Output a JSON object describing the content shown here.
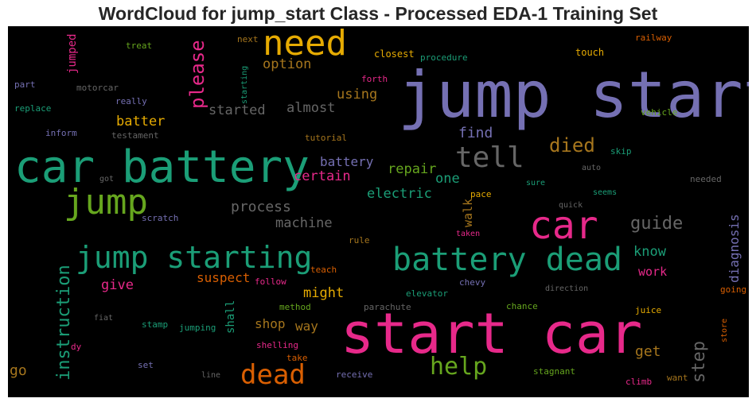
{
  "chart_data": {
    "type": "wordcloud",
    "title": "WordCloud for jump_start Class - Processed EDA-1 Training Set",
    "background": "#000000",
    "colormap": "Dark2",
    "words": [
      {
        "text": "jump start",
        "color": "#7570b3"
      },
      {
        "text": "start car",
        "color": "#e7298a"
      },
      {
        "text": "car battery",
        "color": "#1b9e77"
      },
      {
        "text": "battery dead",
        "color": "#1b9e77"
      },
      {
        "text": "need",
        "color": "#e6ab02"
      },
      {
        "text": "car",
        "color": "#e7298a"
      },
      {
        "text": "jump starting",
        "color": "#1b9e77"
      },
      {
        "text": "jump",
        "color": "#66a61e"
      },
      {
        "text": "tell",
        "color": "#666666"
      },
      {
        "text": "dead",
        "color": "#d95f02"
      },
      {
        "text": "help",
        "color": "#66a61e"
      },
      {
        "text": "please",
        "color": "#e7298a"
      },
      {
        "text": "instruction",
        "color": "#1b9e77"
      },
      {
        "text": "died",
        "color": "#a6761d"
      },
      {
        "text": "guide",
        "color": "#666666"
      },
      {
        "text": "step",
        "color": "#666666"
      },
      {
        "text": "option",
        "color": "#a6761d"
      },
      {
        "text": "started",
        "color": "#666666"
      },
      {
        "text": "almost",
        "color": "#666666"
      },
      {
        "text": "using",
        "color": "#a6761d"
      },
      {
        "text": "batter",
        "color": "#e6ab02"
      },
      {
        "text": "find",
        "color": "#7570b3"
      },
      {
        "text": "battery",
        "color": "#7570b3"
      },
      {
        "text": "certain",
        "color": "#e7298a"
      },
      {
        "text": "repair",
        "color": "#66a61e"
      },
      {
        "text": "one",
        "color": "#1b9e77"
      },
      {
        "text": "electric",
        "color": "#1b9e77"
      },
      {
        "text": "process",
        "color": "#666666"
      },
      {
        "text": "machine",
        "color": "#666666"
      },
      {
        "text": "know",
        "color": "#1b9e77"
      },
      {
        "text": "work",
        "color": "#e7298a"
      },
      {
        "text": "give",
        "color": "#e7298a"
      },
      {
        "text": "suspect",
        "color": "#d95f02"
      },
      {
        "text": "might",
        "color": "#e6ab02"
      },
      {
        "text": "shop",
        "color": "#a6761d"
      },
      {
        "text": "way",
        "color": "#a6761d"
      },
      {
        "text": "get",
        "color": "#a6761d"
      },
      {
        "text": "go",
        "color": "#a6761d"
      },
      {
        "text": "diagnosis",
        "color": "#7570b3"
      },
      {
        "text": "walk",
        "color": "#a6761d"
      },
      {
        "text": "shall",
        "color": "#1b9e77"
      },
      {
        "text": "jumped",
        "color": "#e7298a"
      },
      {
        "text": "treat",
        "color": "#66a61e"
      },
      {
        "text": "next",
        "color": "#a6761d"
      },
      {
        "text": "railway",
        "color": "#d95f02"
      },
      {
        "text": "closest",
        "color": "#e6ab02"
      },
      {
        "text": "procedure",
        "color": "#1b9e77"
      },
      {
        "text": "touch",
        "color": "#e6ab02"
      },
      {
        "text": "part",
        "color": "#7570b3"
      },
      {
        "text": "motorcar",
        "color": "#666666"
      },
      {
        "text": "starting",
        "color": "#1b9e77"
      },
      {
        "text": "forth",
        "color": "#e7298a"
      },
      {
        "text": "replace",
        "color": "#1b9e77"
      },
      {
        "text": "really",
        "color": "#7570b3"
      },
      {
        "text": "vehicle",
        "color": "#66a61e"
      },
      {
        "text": "inform",
        "color": "#7570b3"
      },
      {
        "text": "testament",
        "color": "#666666"
      },
      {
        "text": "tutorial",
        "color": "#a6761d"
      },
      {
        "text": "skip",
        "color": "#1b9e77"
      },
      {
        "text": "got",
        "color": "#666666"
      },
      {
        "text": "auto",
        "color": "#666666"
      },
      {
        "text": "needed",
        "color": "#666666"
      },
      {
        "text": "sure",
        "color": "#1b9e77"
      },
      {
        "text": "pace",
        "color": "#e6ab02"
      },
      {
        "text": "seems",
        "color": "#1b9e77"
      },
      {
        "text": "quick",
        "color": "#666666"
      },
      {
        "text": "scratch",
        "color": "#7570b3"
      },
      {
        "text": "rule",
        "color": "#a6761d"
      },
      {
        "text": "taken",
        "color": "#e7298a"
      },
      {
        "text": "teach",
        "color": "#d95f02"
      },
      {
        "text": "follow",
        "color": "#e7298a"
      },
      {
        "text": "chevy",
        "color": "#7570b3"
      },
      {
        "text": "direction",
        "color": "#666666"
      },
      {
        "text": "going",
        "color": "#d95f02"
      },
      {
        "text": "elevator",
        "color": "#1b9e77"
      },
      {
        "text": "method",
        "color": "#66a61e"
      },
      {
        "text": "parachute",
        "color": "#666666"
      },
      {
        "text": "chance",
        "color": "#66a61e"
      },
      {
        "text": "juice",
        "color": "#e6ab02"
      },
      {
        "text": "fiat",
        "color": "#666666"
      },
      {
        "text": "stamp",
        "color": "#1b9e77"
      },
      {
        "text": "jumping",
        "color": "#1b9e77"
      },
      {
        "text": "dy",
        "color": "#e7298a"
      },
      {
        "text": "shelling",
        "color": "#e7298a"
      },
      {
        "text": "take",
        "color": "#d95f02"
      },
      {
        "text": "set",
        "color": "#7570b3"
      },
      {
        "text": "line",
        "color": "#666666"
      },
      {
        "text": "receive",
        "color": "#7570b3"
      },
      {
        "text": "stagnant",
        "color": "#66a61e"
      },
      {
        "text": "climb",
        "color": "#e7298a"
      },
      {
        "text": "want",
        "color": "#a6761d"
      },
      {
        "text": "store",
        "color": "#d95f02"
      }
    ]
  }
}
